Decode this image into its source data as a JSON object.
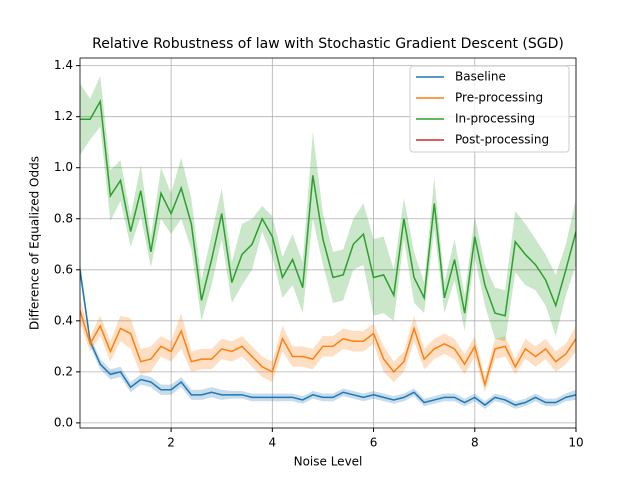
{
  "chart_data": {
    "type": "line",
    "title": "Relative Robustness of law with Stochastic Gradient Descent (SGD)",
    "x_label": "Noise Level",
    "y_label": "Difference of Equalized Odds",
    "x": [
      0.2,
      0.4,
      0.6,
      0.8,
      1.0,
      1.2,
      1.4,
      1.6,
      1.8,
      2.0,
      2.2,
      2.4,
      2.6,
      2.8,
      3.0,
      3.2,
      3.4,
      3.6,
      3.8,
      4.0,
      4.2,
      4.4,
      4.6,
      4.8,
      5.0,
      5.2,
      5.4,
      5.6,
      5.8,
      6.0,
      6.2,
      6.4,
      6.6,
      6.8,
      7.0,
      7.2,
      7.4,
      7.6,
      7.8,
      8.0,
      8.2,
      8.4,
      8.6,
      8.8,
      9.0,
      9.2,
      9.4,
      9.6,
      9.8,
      10.0
    ],
    "series": [
      {
        "name": "Baseline",
        "color": "#1f77b4",
        "values": [
          0.6,
          0.32,
          0.23,
          0.19,
          0.2,
          0.14,
          0.17,
          0.16,
          0.13,
          0.13,
          0.16,
          0.11,
          0.11,
          0.12,
          0.11,
          0.11,
          0.11,
          0.1,
          0.1,
          0.1,
          0.1,
          0.1,
          0.09,
          0.11,
          0.1,
          0.1,
          0.12,
          0.11,
          0.1,
          0.11,
          0.1,
          0.09,
          0.1,
          0.12,
          0.08,
          0.09,
          0.1,
          0.1,
          0.08,
          0.1,
          0.07,
          0.1,
          0.09,
          0.07,
          0.08,
          0.1,
          0.08,
          0.08,
          0.1,
          0.11
        ],
        "error": [
          0.03,
          0.02,
          0.02,
          0.02,
          0.02,
          0.02,
          0.02,
          0.02,
          0.02,
          0.02,
          0.02,
          0.02,
          0.02,
          0.02,
          0.02,
          0.015,
          0.015,
          0.015,
          0.015,
          0.015,
          0.015,
          0.015,
          0.015,
          0.015,
          0.015,
          0.015,
          0.015,
          0.015,
          0.015,
          0.015,
          0.015,
          0.015,
          0.015,
          0.015,
          0.015,
          0.015,
          0.015,
          0.015,
          0.015,
          0.015,
          0.015,
          0.015,
          0.015,
          0.015,
          0.015,
          0.015,
          0.015,
          0.015,
          0.015,
          0.02
        ]
      },
      {
        "name": "Pre-processing",
        "color": "#ff7f0e",
        "values": [
          0.44,
          0.31,
          0.38,
          0.28,
          0.37,
          0.35,
          0.24,
          0.25,
          0.3,
          0.28,
          0.36,
          0.24,
          0.25,
          0.25,
          0.29,
          0.28,
          0.3,
          0.26,
          0.22,
          0.2,
          0.33,
          0.26,
          0.26,
          0.25,
          0.3,
          0.3,
          0.33,
          0.32,
          0.32,
          0.35,
          0.25,
          0.2,
          0.24,
          0.37,
          0.25,
          0.29,
          0.31,
          0.29,
          0.23,
          0.3,
          0.15,
          0.29,
          0.3,
          0.22,
          0.29,
          0.26,
          0.29,
          0.24,
          0.27,
          0.33
        ],
        "error": [
          0.05,
          0.03,
          0.04,
          0.04,
          0.05,
          0.06,
          0.05,
          0.05,
          0.04,
          0.04,
          0.07,
          0.04,
          0.04,
          0.04,
          0.04,
          0.04,
          0.04,
          0.04,
          0.04,
          0.04,
          0.05,
          0.04,
          0.04,
          0.04,
          0.04,
          0.04,
          0.04,
          0.04,
          0.04,
          0.04,
          0.05,
          0.04,
          0.04,
          0.05,
          0.04,
          0.04,
          0.04,
          0.04,
          0.04,
          0.04,
          0.03,
          0.04,
          0.04,
          0.03,
          0.04,
          0.04,
          0.04,
          0.04,
          0.04,
          0.05
        ]
      },
      {
        "name": "In-processing",
        "color": "#2ca02c",
        "values": [
          1.19,
          1.19,
          1.26,
          0.89,
          0.95,
          0.75,
          0.91,
          0.67,
          0.9,
          0.82,
          0.92,
          0.78,
          0.48,
          0.64,
          0.82,
          0.55,
          0.66,
          0.7,
          0.8,
          0.73,
          0.57,
          0.64,
          0.53,
          0.97,
          0.72,
          0.57,
          0.58,
          0.7,
          0.74,
          0.57,
          0.58,
          0.5,
          0.8,
          0.57,
          0.49,
          0.86,
          0.49,
          0.64,
          0.43,
          0.73,
          0.54,
          0.43,
          0.42,
          0.71,
          0.66,
          0.62,
          0.56,
          0.46,
          0.6,
          0.75
        ],
        "error": [
          0.14,
          0.08,
          0.1,
          0.1,
          0.08,
          0.06,
          0.1,
          0.06,
          0.1,
          0.08,
          0.12,
          0.1,
          0.08,
          0.1,
          0.1,
          0.08,
          0.12,
          0.1,
          0.05,
          0.08,
          0.08,
          0.1,
          0.1,
          0.17,
          0.1,
          0.1,
          0.1,
          0.1,
          0.12,
          0.15,
          0.15,
          0.1,
          0.08,
          0.1,
          0.06,
          0.1,
          0.06,
          0.08,
          0.07,
          0.08,
          0.08,
          0.1,
          0.1,
          0.12,
          0.12,
          0.1,
          0.1,
          0.12,
          0.1,
          0.13
        ]
      },
      {
        "name": "Post-processing",
        "color": "#d62728",
        "values": [
          null,
          null,
          null,
          null,
          null,
          null,
          null,
          null,
          null,
          null,
          null,
          null,
          null,
          null,
          null,
          null,
          null,
          null,
          null,
          null,
          null,
          null,
          null,
          null,
          null,
          null,
          null,
          null,
          null,
          null,
          null,
          null,
          null,
          null,
          null,
          null,
          null,
          null,
          null,
          null,
          null,
          null,
          null,
          null,
          null,
          null,
          null,
          null,
          null,
          null
        ]
      }
    ],
    "xlim": [
      0.2,
      10
    ],
    "ylim": [
      -0.02,
      1.43
    ],
    "xticks": [
      2,
      4,
      6,
      8,
      10
    ],
    "yticks": [
      {
        "value": 0,
        "label": "0.0"
      },
      0.2,
      0.4,
      0.6,
      0.8,
      {
        "value": 1,
        "label": "1.0"
      },
      1.2,
      1.4
    ],
    "grid": true,
    "legend": "upper right"
  }
}
